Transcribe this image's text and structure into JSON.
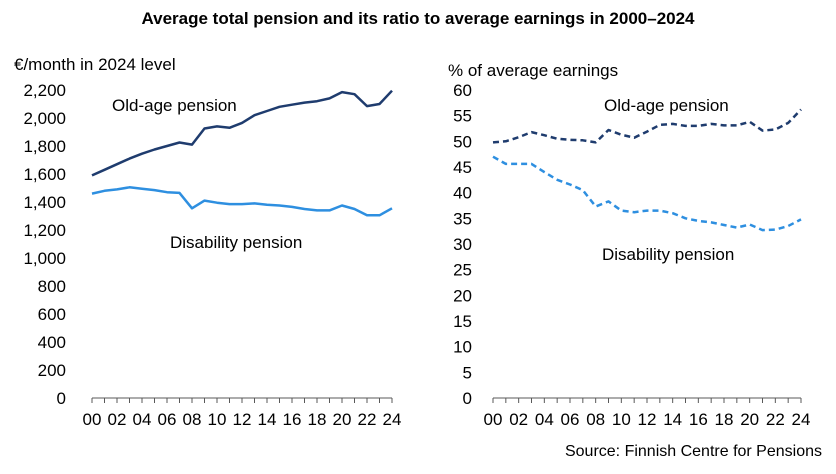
{
  "title": "Average total pension and its ratio to average earnings in 2000–2024",
  "source": "Source: Finnish Centre for Pensions",
  "colors": {
    "old_age": "#1F3C6E",
    "disability": "#2E8FE0",
    "axis": "#595959"
  },
  "chart_data": [
    {
      "type": "line",
      "ylabel": "€/month in 2024 level",
      "ylim": [
        0,
        2200
      ],
      "yticks": [
        0,
        200,
        400,
        600,
        800,
        1000,
        1200,
        1400,
        1600,
        1800,
        2000,
        2200
      ],
      "ytick_labels": [
        "0",
        "200",
        "400",
        "600",
        "800",
        "1,000",
        "1,200",
        "1,400",
        "1,600",
        "1,800",
        "2,000",
        "2,200"
      ],
      "x": [
        2000,
        2001,
        2002,
        2003,
        2004,
        2005,
        2006,
        2007,
        2008,
        2009,
        2010,
        2011,
        2012,
        2013,
        2014,
        2015,
        2016,
        2017,
        2018,
        2019,
        2020,
        2021,
        2022,
        2023,
        2024
      ],
      "xtick_labels": [
        "00",
        "02",
        "04",
        "06",
        "08",
        "10",
        "12",
        "14",
        "16",
        "18",
        "20",
        "22",
        "24"
      ],
      "grid": false,
      "series": [
        {
          "name": "Old-age pension",
          "style": "solid",
          "color": "#1F3C6E",
          "values": [
            1590,
            1630,
            1670,
            1710,
            1745,
            1775,
            1800,
            1825,
            1810,
            1925,
            1940,
            1930,
            1965,
            2020,
            2050,
            2080,
            2095,
            2110,
            2120,
            2140,
            2185,
            2170,
            2085,
            2100,
            2195
          ]
        },
        {
          "name": "Disability pension",
          "style": "solid",
          "color": "#2E8FE0",
          "values": [
            1460,
            1480,
            1490,
            1505,
            1495,
            1485,
            1470,
            1465,
            1355,
            1410,
            1395,
            1385,
            1385,
            1390,
            1380,
            1375,
            1365,
            1350,
            1340,
            1340,
            1375,
            1350,
            1305,
            1305,
            1355
          ]
        }
      ]
    },
    {
      "type": "line",
      "ylabel": "% of average earnings",
      "ylim": [
        0,
        60
      ],
      "yticks": [
        0,
        5,
        10,
        15,
        20,
        25,
        30,
        35,
        40,
        45,
        50,
        55,
        60
      ],
      "ytick_labels": [
        "0",
        "5",
        "10",
        "15",
        "20",
        "25",
        "30",
        "35",
        "40",
        "45",
        "50",
        "55",
        "60"
      ],
      "x": [
        2000,
        2001,
        2002,
        2003,
        2004,
        2005,
        2006,
        2007,
        2008,
        2009,
        2010,
        2011,
        2012,
        2013,
        2014,
        2015,
        2016,
        2017,
        2018,
        2019,
        2020,
        2021,
        2022,
        2023,
        2024
      ],
      "xtick_labels": [
        "00",
        "02",
        "04",
        "06",
        "08",
        "10",
        "12",
        "14",
        "16",
        "18",
        "20",
        "22",
        "24"
      ],
      "grid": false,
      "series": [
        {
          "name": "Old-age pension",
          "style": "dashed",
          "color": "#1F3C6E",
          "values": [
            49.8,
            50.0,
            50.8,
            51.8,
            51.2,
            50.5,
            50.3,
            50.2,
            49.8,
            52.2,
            51.3,
            50.7,
            51.9,
            53.2,
            53.4,
            53.0,
            53.0,
            53.4,
            53.1,
            53.1,
            53.8,
            52.1,
            52.3,
            53.6,
            56.2
          ]
        },
        {
          "name": "Disability pension",
          "style": "dashed",
          "color": "#2E8FE0",
          "values": [
            47.0,
            45.6,
            45.6,
            45.6,
            44.0,
            42.5,
            41.6,
            40.5,
            37.3,
            38.3,
            36.5,
            36.2,
            36.5,
            36.5,
            36.0,
            35.0,
            34.5,
            34.2,
            33.7,
            33.2,
            33.8,
            32.7,
            32.8,
            33.5,
            34.8
          ]
        }
      ]
    }
  ]
}
